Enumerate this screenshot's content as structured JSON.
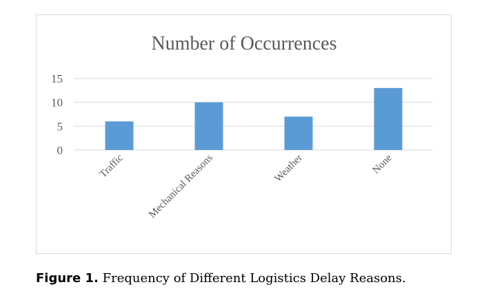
{
  "caption": {
    "label": "Figure 1.",
    "text": " Frequency of Different Logistics Delay Reasons."
  },
  "chart_data": {
    "type": "bar",
    "title": "Number of Occurrences",
    "categories": [
      "Traffic",
      "Mechanical Reasons",
      "Weather",
      "None"
    ],
    "values": [
      6,
      10,
      7,
      13
    ],
    "ylim": [
      0,
      15
    ],
    "yticks": [
      0,
      5,
      10,
      15
    ],
    "grid": true,
    "legend": "none",
    "bar_color": "#5b9bd5",
    "grid_color": "#d9d9d9",
    "text_color": "#595959"
  }
}
